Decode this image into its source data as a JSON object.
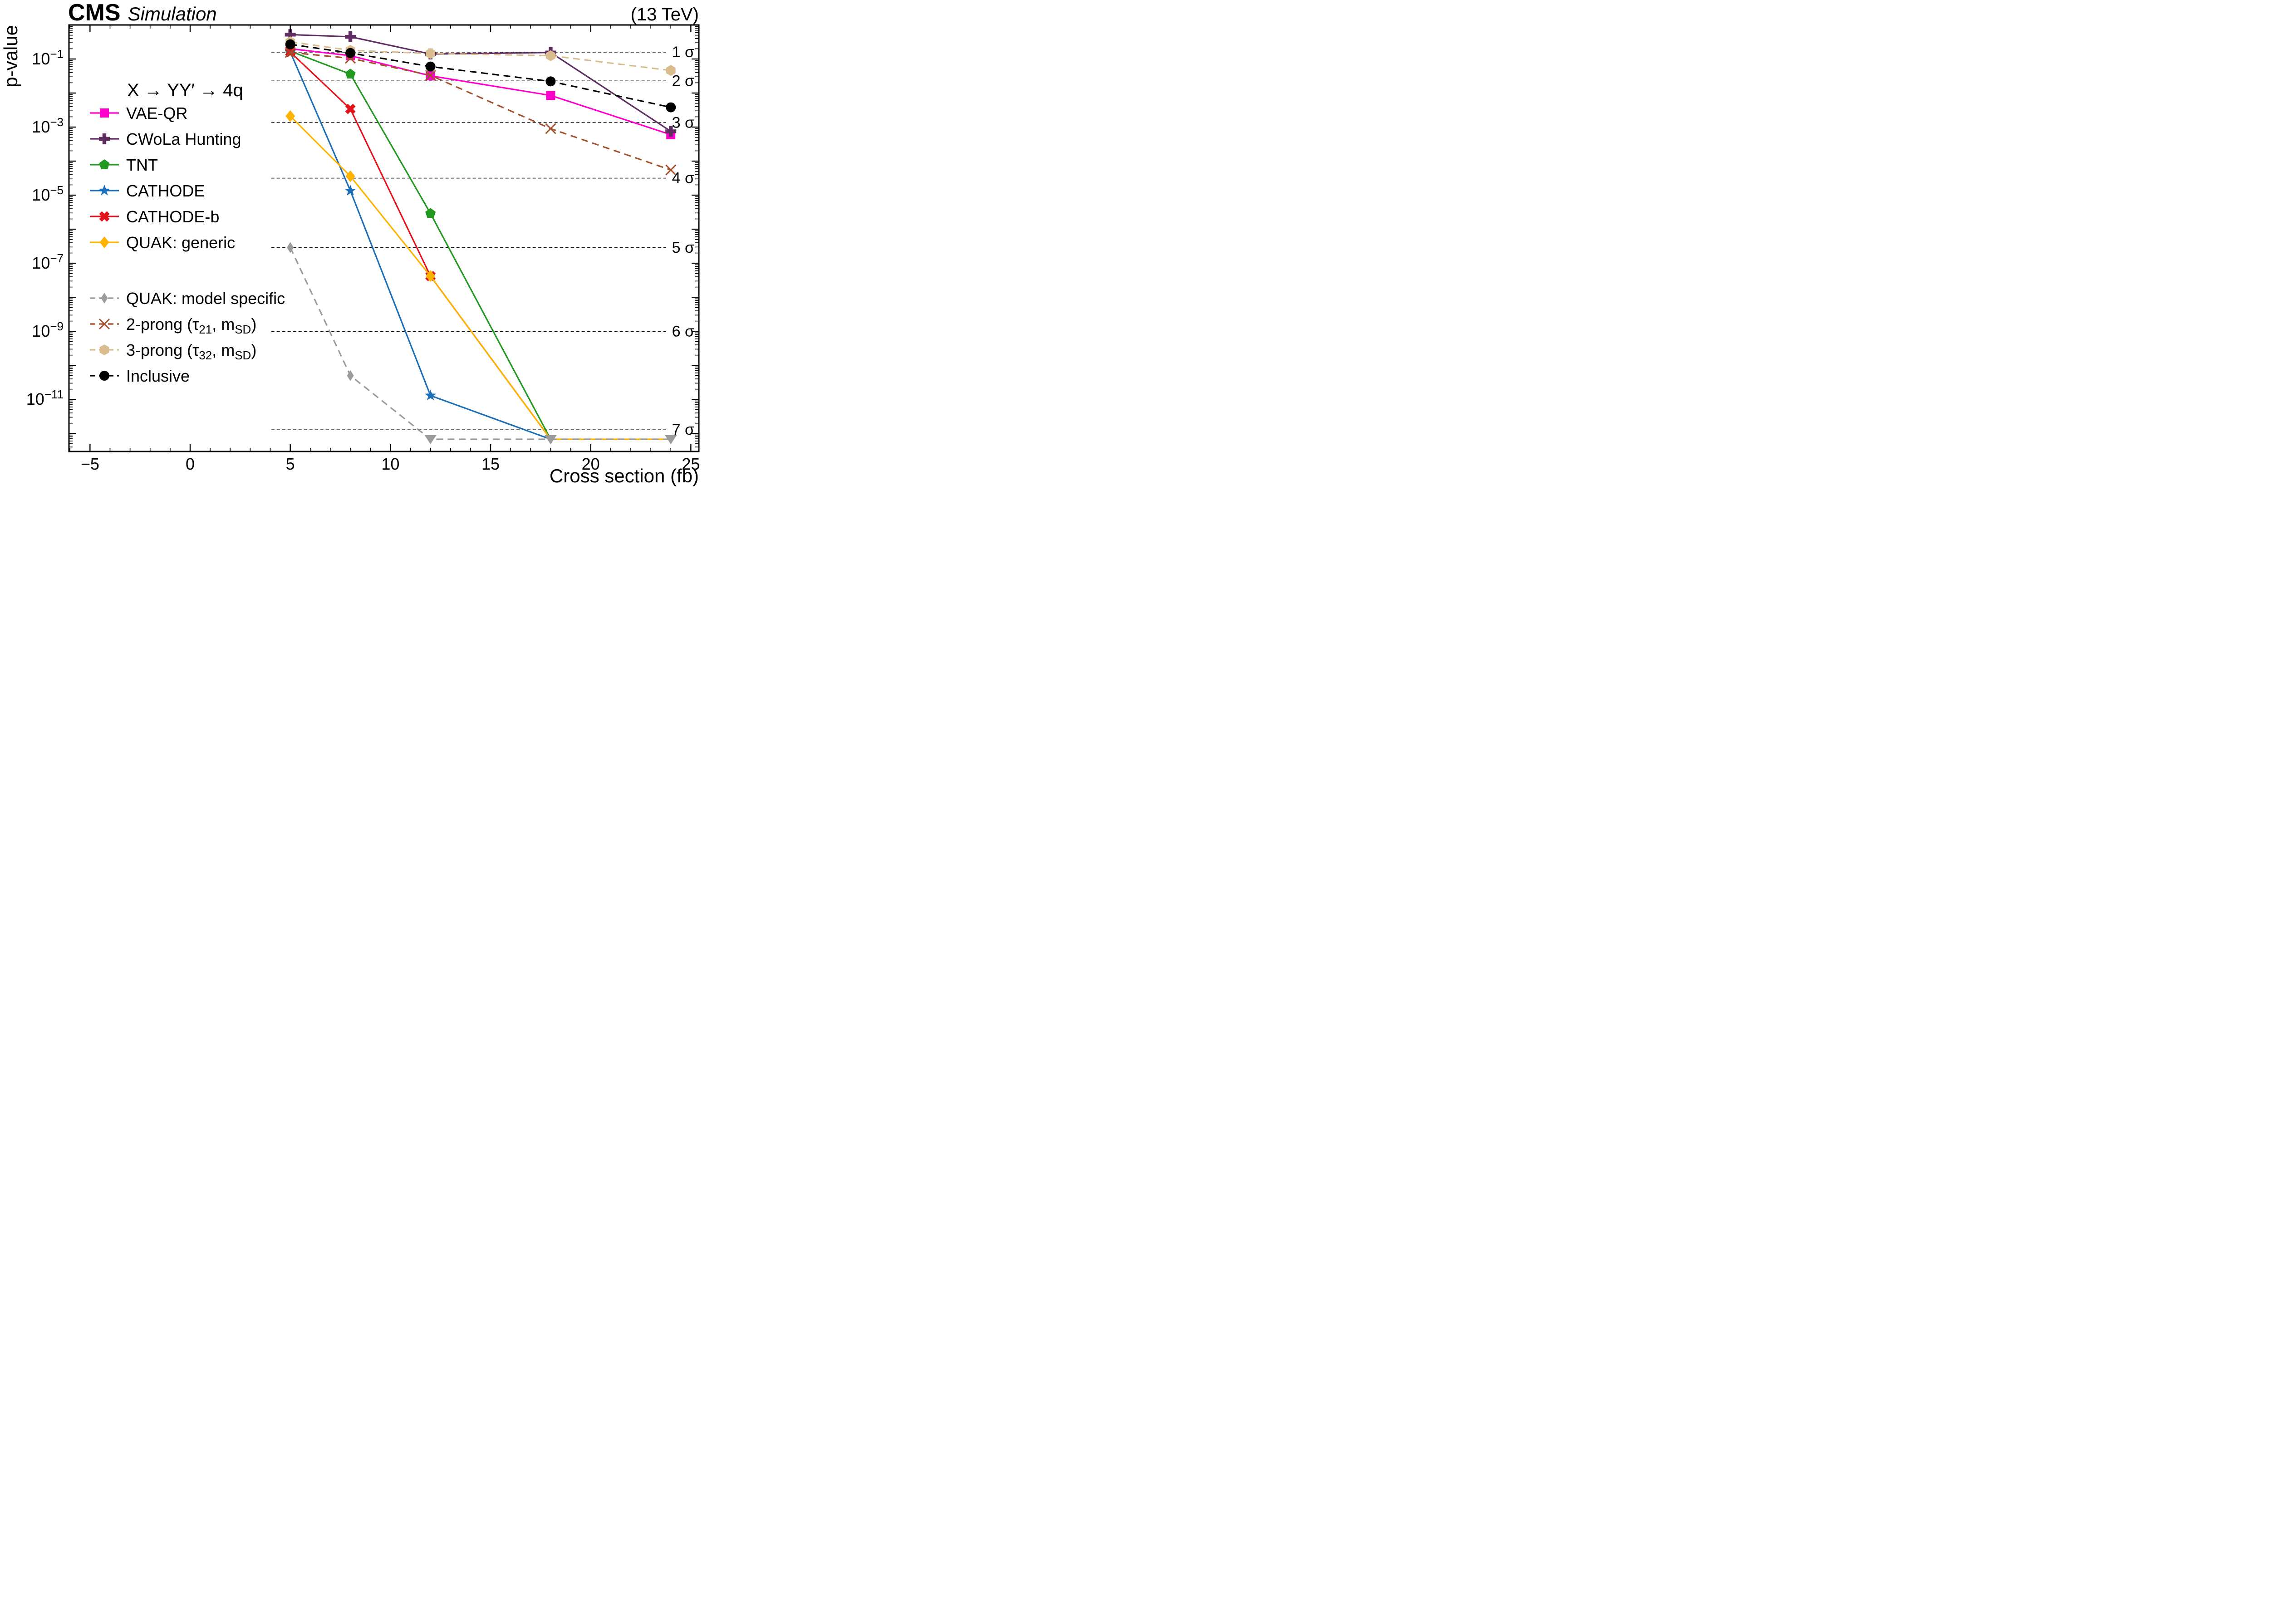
{
  "header": {
    "experiment": "CMS",
    "context": "Simulation",
    "energy": "(13 TeV)"
  },
  "chart_data": {
    "type": "line",
    "title": "X → YY′ → 4q",
    "xlabel": "Cross section (fb)",
    "ylabel": "p-value",
    "y_scale": "log",
    "xlim": [
      -6.05,
      25.4
    ],
    "ylim_exponents": [
      -12.53,
      0
    ],
    "x_ticks": [
      -5,
      0,
      5,
      10,
      15,
      20,
      25
    ],
    "y_tick_exponents": [
      -1,
      -3,
      -5,
      -7,
      -9,
      -11
    ],
    "clip_exponent": -12.17,
    "clip_color": "#9b9b9b",
    "dashed_group_break_index": 6,
    "sigma_lines": [
      {
        "label": "1 σ",
        "p": 0.1587
      },
      {
        "label": "2 σ",
        "p": 0.02275
      },
      {
        "label": "3 σ",
        "p": 0.00135
      },
      {
        "label": "4 σ",
        "p": 3.167e-05
      },
      {
        "label": "5 σ",
        "p": 2.867e-07
      },
      {
        "label": "6 σ",
        "p": 9.866e-10
      },
      {
        "label": "7 σ",
        "p": 1.28e-12
      }
    ],
    "series": [
      {
        "name": "VAE-QR",
        "color": "#ff00cc",
        "marker": "square",
        "dashed": false,
        "points": [
          [
            5,
            0.2
          ],
          [
            8,
            0.125
          ],
          [
            12,
            0.032
          ],
          [
            18,
            0.0085
          ],
          [
            24,
            0.0006
          ]
        ]
      },
      {
        "name": "CWoLa Hunting",
        "color": "#5f2d62",
        "marker": "plus",
        "dashed": false,
        "points": [
          [
            5,
            0.52
          ],
          [
            8,
            0.45
          ],
          [
            12,
            0.14
          ],
          [
            18,
            0.155
          ],
          [
            24,
            0.00075
          ]
        ]
      },
      {
        "name": "TNT",
        "color": "#22991f",
        "marker": "pentagon",
        "dashed": false,
        "points": [
          [
            5,
            0.17
          ],
          [
            8,
            0.036
          ],
          [
            12,
            2.9e-06
          ],
          [
            18,
            "clip"
          ]
        ]
      },
      {
        "name": "CATHODE",
        "color": "#1c6eb8",
        "marker": "star",
        "dashed": false,
        "points": [
          [
            5,
            0.16
          ],
          [
            8,
            1.35e-05
          ],
          [
            12,
            1.3e-11
          ],
          [
            18,
            "clip"
          ]
        ]
      },
      {
        "name": "CATHODE-b",
        "color": "#e3131b",
        "marker": "xbold",
        "dashed": false,
        "points": [
          [
            5,
            0.16
          ],
          [
            8,
            0.0034
          ],
          [
            12,
            4.2e-08
          ],
          [
            18,
            "clip"
          ]
        ]
      },
      {
        "name": "QUAK: generic",
        "color": "#ffb300",
        "marker": "diamond",
        "dashed": false,
        "points": [
          [
            5,
            0.0021
          ],
          [
            8,
            3.6e-05
          ],
          [
            12,
            4.2e-08
          ],
          [
            18,
            "clip"
          ],
          [
            24,
            "clip"
          ]
        ]
      },
      {
        "name": "QUAK: model specific",
        "color": "#9b9b9b",
        "marker": "thindiamond",
        "dashed": true,
        "points": [
          [
            5,
            2.9e-07
          ],
          [
            8,
            5e-11
          ],
          [
            12,
            "clip"
          ],
          [
            18,
            "clip"
          ],
          [
            24,
            "clip"
          ]
        ]
      },
      {
        "name": "2-prong (τ_{21}, m_{SD})",
        "color": "#a3512c",
        "marker": "xcross",
        "dashed": true,
        "points": [
          [
            5,
            0.155
          ],
          [
            8,
            0.105
          ],
          [
            12,
            0.033
          ],
          [
            18,
            0.0009
          ],
          [
            24,
            5.5e-05
          ]
        ]
      },
      {
        "name": "3-prong (τ_{32}, m_{SD})",
        "color": "#d9bd8e",
        "marker": "hexagon",
        "dashed": true,
        "points": [
          [
            5,
            0.32
          ],
          [
            8,
            0.18
          ],
          [
            12,
            0.145
          ],
          [
            18,
            0.125
          ],
          [
            24,
            0.046
          ]
        ]
      },
      {
        "name": "Inclusive",
        "color": "#000000",
        "marker": "circle",
        "dashed": true,
        "points": [
          [
            5,
            0.27
          ],
          [
            8,
            0.15
          ],
          [
            12,
            0.06
          ],
          [
            18,
            0.022
          ],
          [
            24,
            0.0038
          ]
        ]
      }
    ]
  }
}
